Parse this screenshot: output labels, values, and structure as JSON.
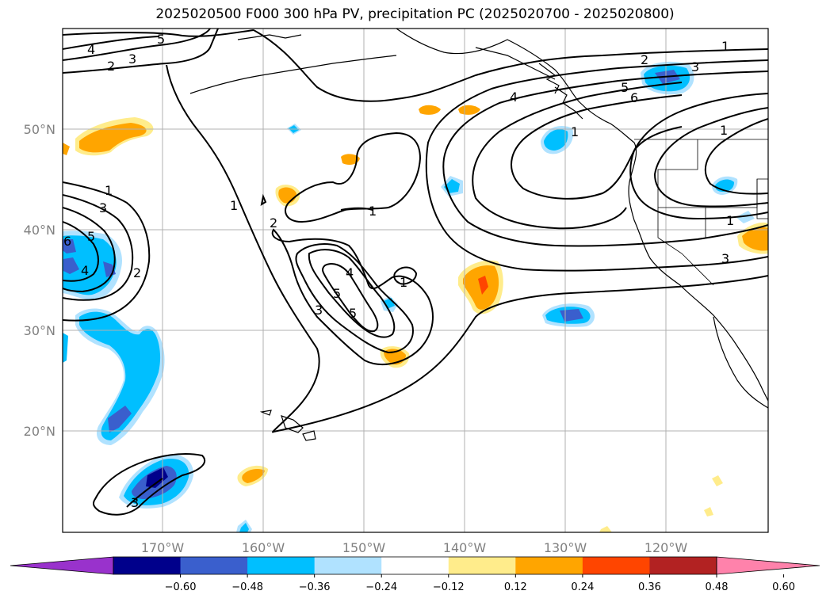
{
  "title": "2025020500 F000 300 hPa PV, precipitation PC (2025020700 - 2025020800)",
  "lat_labels": [
    "50°N",
    "40°N",
    "30°N",
    "20°N"
  ],
  "lon_labels": [
    "170°W",
    "160°W",
    "150°W",
    "140°W",
    "130°W",
    "120°W"
  ],
  "contour_labels": [
    "4",
    "3",
    "2",
    "5",
    "1",
    "1",
    "2",
    "3",
    "4",
    "5",
    "6",
    "1",
    "1",
    "1",
    "2",
    "3",
    "1",
    "3",
    "4",
    "5",
    "6",
    "4",
    "2",
    "1",
    "1",
    "3",
    "4",
    "5",
    "5",
    "2",
    "3",
    "1"
  ],
  "colorbar": {
    "ticks": [
      "−0.60",
      "−0.48",
      "−0.36",
      "−0.24",
      "−0.12",
      "0.12",
      "0.24",
      "0.36",
      "0.48",
      "0.60"
    ],
    "colors": [
      "#9932cc",
      "#00008b",
      "#3a5fcd",
      "#00bfff",
      "#b0e2ff",
      "#ffffff",
      "#ffec8b",
      "#ffa500",
      "#ff4500",
      "#b22222",
      "#ff82ab"
    ]
  }
}
